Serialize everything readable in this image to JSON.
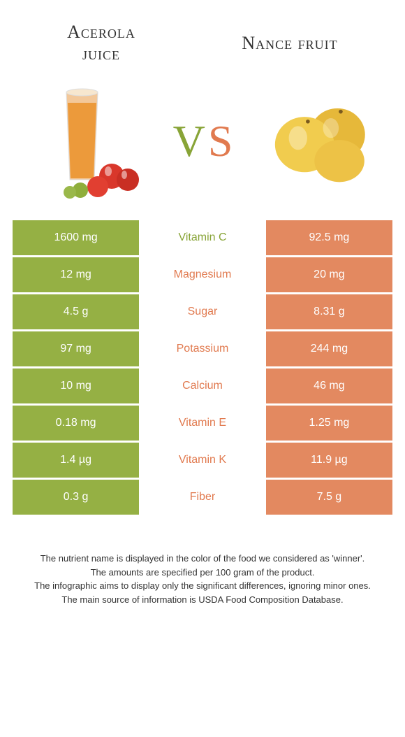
{
  "colors": {
    "left_bg": "#95b044",
    "right_bg": "#e38960",
    "left_text": "#88a437",
    "right_text": "#e17a4f",
    "footer_text": "#333333"
  },
  "header": {
    "left_title_line1": "Acerola",
    "left_title_line2": "juice",
    "right_title": "Nance fruit"
  },
  "vs": {
    "v": "V",
    "s": "S"
  },
  "rows": [
    {
      "left": "1600 mg",
      "mid": "Vitamin C",
      "right": "92.5 mg",
      "winner": "left"
    },
    {
      "left": "12 mg",
      "mid": "Magnesium",
      "right": "20 mg",
      "winner": "right"
    },
    {
      "left": "4.5 g",
      "mid": "Sugar",
      "right": "8.31 g",
      "winner": "right"
    },
    {
      "left": "97 mg",
      "mid": "Potassium",
      "right": "244 mg",
      "winner": "right"
    },
    {
      "left": "10 mg",
      "mid": "Calcium",
      "right": "46 mg",
      "winner": "right"
    },
    {
      "left": "0.18 mg",
      "mid": "Vitamin E",
      "right": "1.25 mg",
      "winner": "right"
    },
    {
      "left": "1.4 µg",
      "mid": "Vitamin K",
      "right": "11.9 µg",
      "winner": "right"
    },
    {
      "left": "0.3 g",
      "mid": "Fiber",
      "right": "7.5 g",
      "winner": "right"
    }
  ],
  "footer": {
    "line1": "The nutrient name is displayed in the color of the food we considered as 'winner'.",
    "line2": "The amounts are specified per 100 gram of the product.",
    "line3": "The infographic aims to display only the significant differences, ignoring minor ones.",
    "line4": "The main source of information is USDA Food Composition Database."
  }
}
